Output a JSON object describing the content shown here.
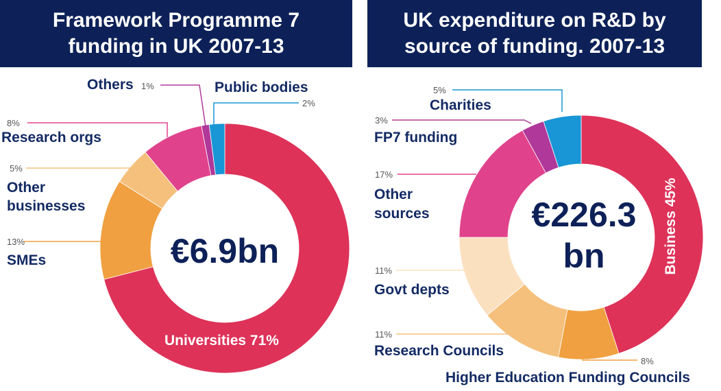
{
  "chart_data": [
    {
      "type": "donut",
      "title_lines": [
        "Framework Programme 7",
        "funding in UK 2007-13"
      ],
      "center_label": "€6.9bn",
      "colors": {
        "universities": "#de3259",
        "smes": "#f0a040",
        "other_businesses": "#f5c07c",
        "research_orgs": "#e0438c",
        "others": "#b0389a",
        "public_bodies": "#1896d6"
      },
      "slices": [
        {
          "key": "universities",
          "label": "Universities",
          "pct_label": "71%",
          "value": 71
        },
        {
          "key": "smes",
          "label": "SMEs",
          "pct_label": "13%",
          "value": 13
        },
        {
          "key": "other_businesses",
          "label": "Other businesses",
          "label_lines": [
            "Other",
            "businesses"
          ],
          "pct_label": "5%",
          "value": 5
        },
        {
          "key": "research_orgs",
          "label": "Research orgs",
          "pct_label": "8%",
          "value": 8
        },
        {
          "key": "others",
          "label": "Others",
          "pct_label": "1%",
          "value": 1
        },
        {
          "key": "public_bodies",
          "label": "Public bodies",
          "pct_label": "2%",
          "value": 2
        }
      ]
    },
    {
      "type": "donut",
      "title_lines": [
        "UK expenditure on R&D by",
        "source of funding. 2007-13"
      ],
      "center_label_lines": [
        "€226.3",
        "bn"
      ],
      "colors": {
        "business": "#de3259",
        "hefc": "#f0a040",
        "research_councils": "#f5c07c",
        "govt_depts": "#fbe0c0",
        "other_sources": "#e0438c",
        "fp7": "#b0389a",
        "charities": "#1896d6"
      },
      "slices": [
        {
          "key": "business",
          "label": "Business",
          "pct_label": "45%",
          "value": 45
        },
        {
          "key": "hefc",
          "label": "Higher Education Funding Councils",
          "pct_label": "8%",
          "value": 8
        },
        {
          "key": "research_councils",
          "label": "Research Councils",
          "pct_label": "11%",
          "value": 11
        },
        {
          "key": "govt_depts",
          "label": "Govt depts",
          "pct_label": "11%",
          "value": 11
        },
        {
          "key": "other_sources",
          "label": "Other sources",
          "label_lines": [
            "Other",
            "sources"
          ],
          "pct_label": "17%",
          "value": 17
        },
        {
          "key": "fp7",
          "label": "FP7 funding",
          "pct_label": "3%",
          "value": 3
        },
        {
          "key": "charities",
          "label": "Charities",
          "pct_label": "5%",
          "value": 5
        }
      ]
    }
  ]
}
